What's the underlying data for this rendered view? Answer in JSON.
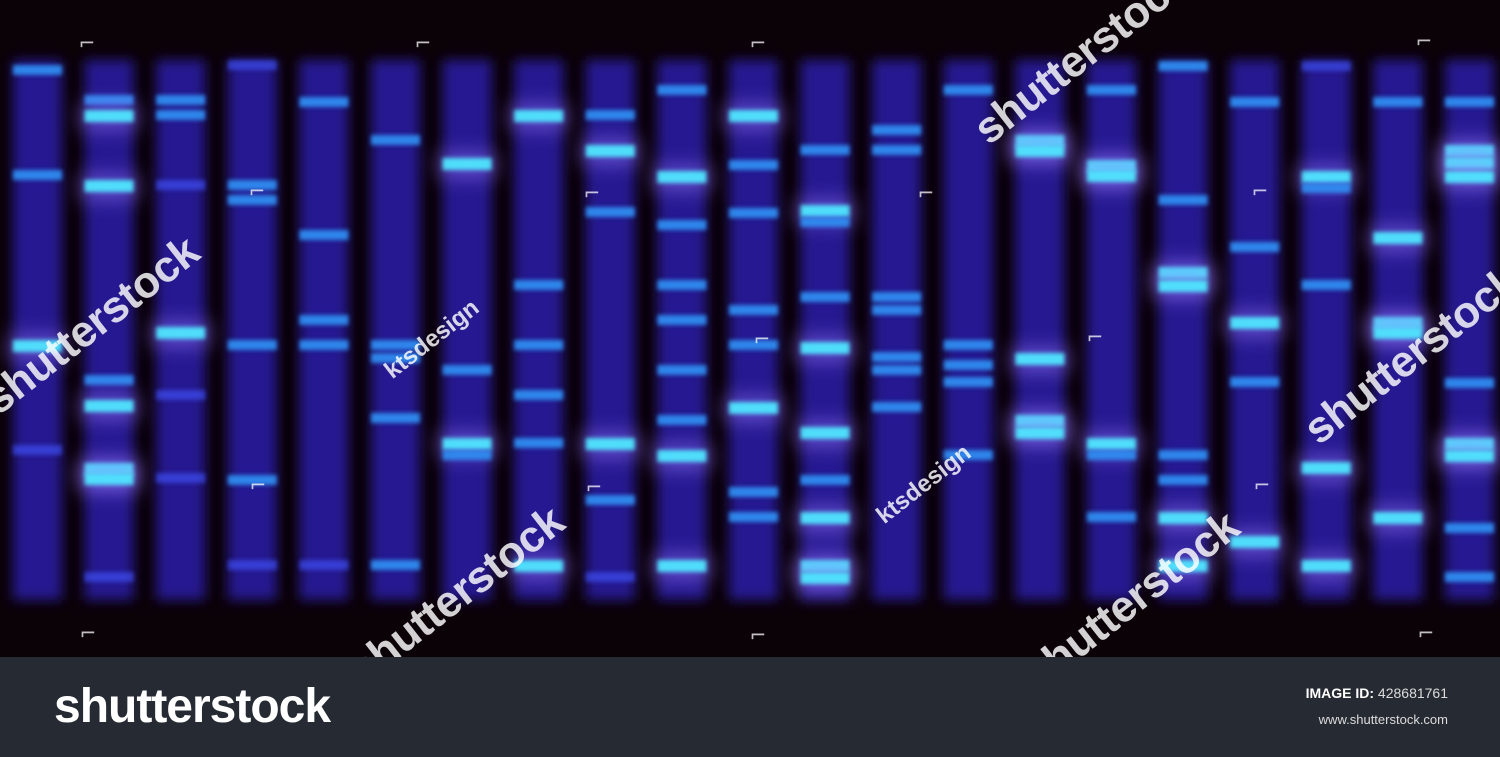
{
  "image": {
    "colors": {
      "background": "#0b0208",
      "lane_base": "#2a1aa8",
      "band_dim": "#3d4ef0",
      "band_mid": "#2f8cf0",
      "band_bright": "#4fe6ff"
    },
    "lanes": [
      {
        "bands": [
          [
            70,
            "m"
          ],
          [
            175,
            "m"
          ],
          [
            345,
            "b"
          ],
          [
            450,
            "d"
          ]
        ]
      },
      {
        "bands": [
          [
            100,
            "m"
          ],
          [
            115,
            "b"
          ],
          [
            185,
            "b"
          ],
          [
            380,
            "m"
          ],
          [
            405,
            "b"
          ],
          [
            468,
            "b"
          ],
          [
            478,
            "b"
          ],
          [
            577,
            "d"
          ]
        ]
      },
      {
        "bands": [
          [
            100,
            "m"
          ],
          [
            115,
            "m"
          ],
          [
            185,
            "d"
          ],
          [
            332,
            "b"
          ],
          [
            395,
            "d"
          ],
          [
            478,
            "d"
          ]
        ]
      },
      {
        "bands": [
          [
            65,
            "d"
          ],
          [
            185,
            "m"
          ],
          [
            200,
            "m"
          ],
          [
            345,
            "m"
          ],
          [
            480,
            "m"
          ],
          [
            565,
            "d"
          ]
        ]
      },
      {
        "bands": [
          [
            102,
            "m"
          ],
          [
            235,
            "m"
          ],
          [
            320,
            "m"
          ],
          [
            345,
            "m"
          ],
          [
            565,
            "d"
          ]
        ]
      },
      {
        "bands": [
          [
            140,
            "m"
          ],
          [
            345,
            "m"
          ],
          [
            358,
            "m"
          ],
          [
            418,
            "m"
          ],
          [
            565,
            "m"
          ]
        ]
      },
      {
        "bands": [
          [
            163,
            "b"
          ],
          [
            370,
            "m"
          ],
          [
            443,
            "b"
          ],
          [
            455,
            "m"
          ]
        ]
      },
      {
        "bands": [
          [
            115,
            "b"
          ],
          [
            285,
            "m"
          ],
          [
            345,
            "m"
          ],
          [
            395,
            "m"
          ],
          [
            443,
            "m"
          ],
          [
            565,
            "b"
          ]
        ]
      },
      {
        "bands": [
          [
            115,
            "m"
          ],
          [
            150,
            "b"
          ],
          [
            212,
            "m"
          ],
          [
            443,
            "b"
          ],
          [
            500,
            "m"
          ],
          [
            577,
            "d"
          ]
        ]
      },
      {
        "bands": [
          [
            90,
            "m"
          ],
          [
            176,
            "b"
          ],
          [
            225,
            "m"
          ],
          [
            285,
            "m"
          ],
          [
            320,
            "m"
          ],
          [
            370,
            "m"
          ],
          [
            420,
            "m"
          ],
          [
            455,
            "b"
          ],
          [
            565,
            "b"
          ]
        ]
      },
      {
        "bands": [
          [
            115,
            "b"
          ],
          [
            165,
            "m"
          ],
          [
            213,
            "m"
          ],
          [
            310,
            "m"
          ],
          [
            345,
            "m"
          ],
          [
            407,
            "b"
          ],
          [
            492,
            "m"
          ],
          [
            517,
            "m"
          ]
        ]
      },
      {
        "bands": [
          [
            150,
            "m"
          ],
          [
            210,
            "b"
          ],
          [
            222,
            "m"
          ],
          [
            297,
            "m"
          ],
          [
            347,
            "b"
          ],
          [
            432,
            "b"
          ],
          [
            480,
            "m"
          ],
          [
            517,
            "b"
          ],
          [
            565,
            "b"
          ],
          [
            577,
            "b"
          ]
        ]
      },
      {
        "bands": [
          [
            130,
            "m"
          ],
          [
            150,
            "m"
          ],
          [
            297,
            "m"
          ],
          [
            310,
            "m"
          ],
          [
            357,
            "m"
          ],
          [
            370,
            "m"
          ],
          [
            407,
            "m"
          ]
        ]
      },
      {
        "bands": [
          [
            90,
            "m"
          ],
          [
            345,
            "m"
          ],
          [
            365,
            "m"
          ],
          [
            382,
            "m"
          ],
          [
            455,
            "m"
          ]
        ]
      },
      {
        "bands": [
          [
            140,
            "b"
          ],
          [
            150,
            "b"
          ],
          [
            358,
            "b"
          ],
          [
            420,
            "b"
          ],
          [
            432,
            "b"
          ]
        ]
      },
      {
        "bands": [
          [
            90,
            "m"
          ],
          [
            165,
            "b"
          ],
          [
            175,
            "b"
          ],
          [
            443,
            "b"
          ],
          [
            455,
            "m"
          ],
          [
            517,
            "m"
          ]
        ]
      },
      {
        "bands": [
          [
            66,
            "m"
          ],
          [
            200,
            "m"
          ],
          [
            272,
            "b"
          ],
          [
            285,
            "b"
          ],
          [
            455,
            "m"
          ],
          [
            480,
            "m"
          ],
          [
            517,
            "b"
          ],
          [
            565,
            "b"
          ]
        ]
      },
      {
        "bands": [
          [
            102,
            "m"
          ],
          [
            247,
            "m"
          ],
          [
            322,
            "b"
          ],
          [
            382,
            "m"
          ],
          [
            541,
            "b"
          ]
        ]
      },
      {
        "bands": [
          [
            66,
            "d"
          ],
          [
            176,
            "b"
          ],
          [
            188,
            "m"
          ],
          [
            285,
            "m"
          ],
          [
            467,
            "b"
          ],
          [
            565,
            "b"
          ]
        ]
      },
      {
        "bands": [
          [
            102,
            "m"
          ],
          [
            237,
            "b"
          ],
          [
            322,
            "b"
          ],
          [
            332,
            "b"
          ],
          [
            517,
            "b"
          ]
        ]
      },
      {
        "bands": [
          [
            102,
            "m"
          ],
          [
            150,
            "b"
          ],
          [
            162,
            "b"
          ],
          [
            176,
            "b"
          ],
          [
            383,
            "m"
          ],
          [
            443,
            "b"
          ],
          [
            455,
            "b"
          ],
          [
            528,
            "m"
          ],
          [
            577,
            "m"
          ]
        ]
      }
    ]
  },
  "watermarks": [
    {
      "text": "shutterstock",
      "size": "big"
    },
    {
      "text": "shutterstock",
      "size": "big"
    },
    {
      "text": "shutterstock",
      "size": "big"
    },
    {
      "text": "shutterstock",
      "size": "big"
    },
    {
      "text": "shutterstock",
      "size": "big"
    },
    {
      "text": "ktsdesign",
      "size": "small"
    },
    {
      "text": "ktsdesign",
      "size": "small"
    }
  ],
  "corner_icon": "corner-bracket-icon",
  "footer": {
    "logo": "shutterstock",
    "image_id_label": "IMAGE ID:",
    "image_id": "428681761",
    "url": "www.shutterstock.com"
  }
}
